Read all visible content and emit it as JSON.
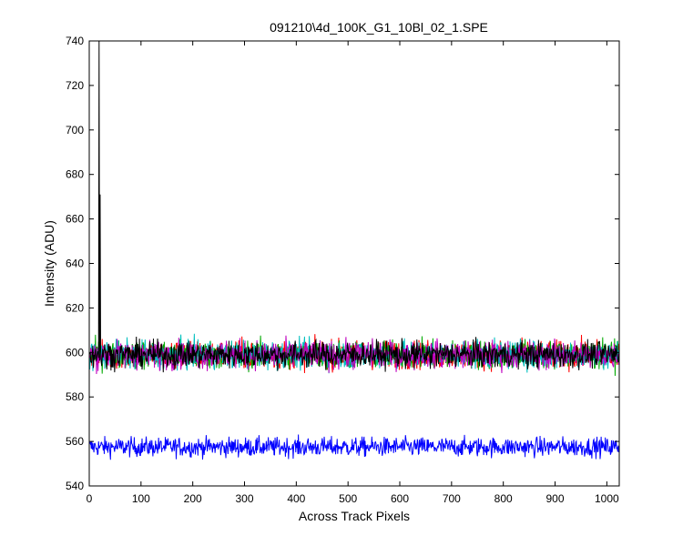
{
  "chart_data": {
    "type": "line",
    "title": "091210\\4d_100K_G1_10Bl_02_1.SPE",
    "xlabel": "Across Track Pixels",
    "ylabel": "Intensity (ADU)",
    "xlim": [
      0,
      1024
    ],
    "ylim": [
      540,
      740
    ],
    "xticks": [
      0,
      100,
      200,
      300,
      400,
      500,
      600,
      700,
      800,
      900,
      1000
    ],
    "yticks": [
      540,
      560,
      580,
      600,
      620,
      640,
      660,
      680,
      700,
      720,
      740
    ],
    "grid": false,
    "series": [
      {
        "color": "#0000ff",
        "baseline": 557.5,
        "noise": 2.2,
        "spikes": []
      },
      {
        "color": "#ff0000",
        "baseline": 599,
        "noise": 3.2,
        "spikes": []
      },
      {
        "color": "#00aa00",
        "baseline": 599,
        "noise": 3.2,
        "spikes": []
      },
      {
        "color": "#00bfbf",
        "baseline": 599,
        "noise": 3.2,
        "spikes": []
      },
      {
        "color": "#bf00bf",
        "baseline": 599,
        "noise": 3.2,
        "spikes": []
      },
      {
        "color": "#000000",
        "baseline": 599,
        "noise": 3.0,
        "spikes": [
          {
            "x": 19,
            "y": 740
          },
          {
            "x": 21,
            "y": 671
          }
        ]
      }
    ]
  }
}
